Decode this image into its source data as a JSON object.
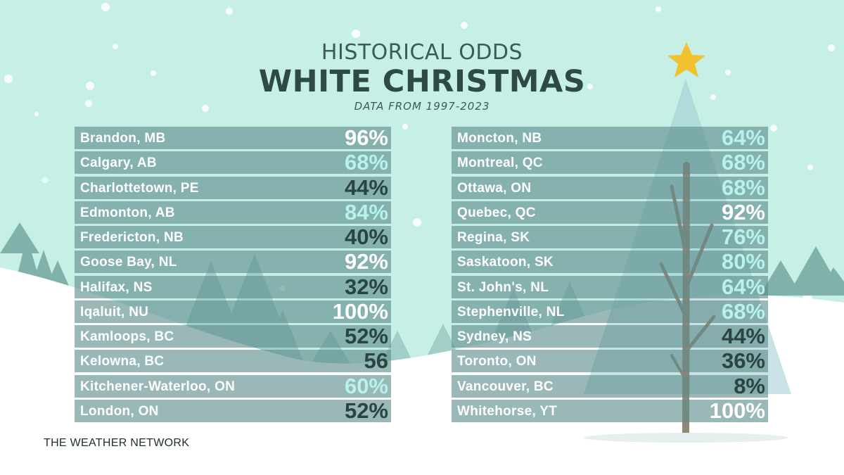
{
  "header": {
    "line1": "HISTORICAL ODDS",
    "line2": "WHITE CHRISTMAS",
    "line3": "DATA FROM 1997-2023"
  },
  "left_list": [
    {
      "city": "Brandon, MB",
      "value": "96%",
      "tone": "white"
    },
    {
      "city": "Calgary, AB",
      "value": "68%",
      "tone": "light"
    },
    {
      "city": "Charlottetown, PE",
      "value": "44%",
      "tone": "dark"
    },
    {
      "city": "Edmonton, AB",
      "value": "84%",
      "tone": "light"
    },
    {
      "city": "Fredericton, NB",
      "value": "40%",
      "tone": "dark"
    },
    {
      "city": "Goose Bay, NL",
      "value": "92%",
      "tone": "white"
    },
    {
      "city": "Halifax, NS",
      "value": "32%",
      "tone": "dark"
    },
    {
      "city": "Iqaluit, NU",
      "value": "100%",
      "tone": "white"
    },
    {
      "city": "Kamloops, BC",
      "value": "52%",
      "tone": "dark"
    },
    {
      "city": "Kelowna, BC",
      "value": "56",
      "tone": "dark"
    },
    {
      "city": "Kitchener-Waterloo, ON",
      "value": "60%",
      "tone": "light"
    },
    {
      "city": "London, ON",
      "value": "52%",
      "tone": "dark"
    }
  ],
  "right_list": [
    {
      "city": "Moncton, NB",
      "value": "64%",
      "tone": "light"
    },
    {
      "city": "Montreal, QC",
      "value": "68%",
      "tone": "light"
    },
    {
      "city": "Ottawa, ON",
      "value": "68%",
      "tone": "light"
    },
    {
      "city": "Quebec, QC",
      "value": "92%",
      "tone": "white"
    },
    {
      "city": "Regina, SK",
      "value": "76%",
      "tone": "light"
    },
    {
      "city": "Saskatoon, SK",
      "value": "80%",
      "tone": "light"
    },
    {
      "city": "St. John's, NL",
      "value": "64%",
      "tone": "light"
    },
    {
      "city": "Stephenville, NL",
      "value": "68%",
      "tone": "light"
    },
    {
      "city": "Sydney, NS",
      "value": "44%",
      "tone": "dark"
    },
    {
      "city": "Toronto, ON",
      "value": "36%",
      "tone": "dark"
    },
    {
      "city": "Vancouver, BC",
      "value": "8%",
      "tone": "dark"
    },
    {
      "city": "Whitehorse, YT",
      "value": "100%",
      "tone": "white"
    }
  ],
  "footer": {
    "source": "THE WEATHER NETWORK"
  },
  "colors": {
    "sky": "#c6f0e6",
    "snow": "#ffffff",
    "tree": "#7aaba5",
    "row_fill": "#5d8c8c",
    "pct_dark": "#2a4441",
    "pct_light": "#b7f3ea",
    "star": "#f2c12e"
  }
}
